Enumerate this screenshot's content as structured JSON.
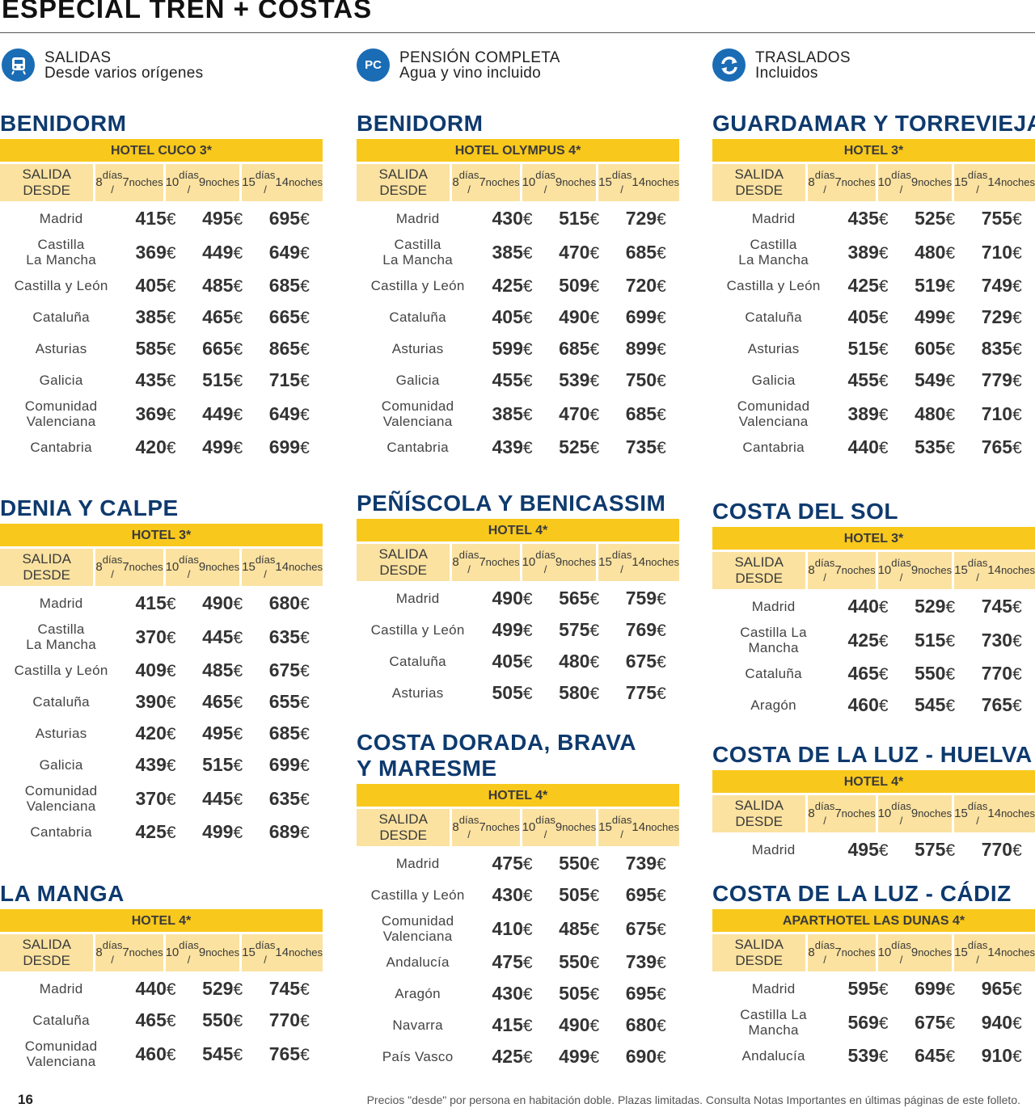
{
  "page_title": "ESPECIAL TREN + COSTAS",
  "features": [
    {
      "icon": "train-icon",
      "line1": "SALIDAS",
      "line2": "Desde varios orígenes"
    },
    {
      "icon": "pc-badge-icon",
      "badge": "PC",
      "line1": "PENSIÓN COMPLETA",
      "line2": "Agua y vino incluido"
    },
    {
      "icon": "transfer-arrows-icon",
      "line1": "TRASLADOS",
      "line2": "Incluidos"
    }
  ],
  "labels": {
    "salida_desde": "SALIDA DESDE",
    "d1": "8",
    "n1": "7",
    "d2": "10",
    "n2": "9",
    "d3": "15",
    "n3": "14",
    "dias": " días /",
    "noches": " noches",
    "currency": "€"
  },
  "colors": {
    "title": "#0e3a6e",
    "hotel_bar": "#f8c81c",
    "subheader": "#fbe2a0",
    "icon": "#1a6cb5"
  },
  "sections": [
    {
      "title": "BENIDORM",
      "hotel": "HOTEL CUCO 3*",
      "rows": [
        [
          "Madrid",
          "415",
          "495",
          "695"
        ],
        [
          "Castilla\nLa Mancha",
          "369",
          "449",
          "649"
        ],
        [
          "Castilla y León",
          "405",
          "485",
          "685"
        ],
        [
          "Cataluña",
          "385",
          "465",
          "665"
        ],
        [
          "Asturias",
          "585",
          "665",
          "865"
        ],
        [
          "Galicia",
          "435",
          "515",
          "715"
        ],
        [
          "Comunidad\nValenciana",
          "369",
          "449",
          "649"
        ],
        [
          "Cantabria",
          "420",
          "499",
          "699"
        ]
      ]
    },
    {
      "title": "DENIA Y CALPE",
      "hotel": "HOTEL 3*",
      "rows": [
        [
          "Madrid",
          "415",
          "490",
          "680"
        ],
        [
          "Castilla\nLa Mancha",
          "370",
          "445",
          "635"
        ],
        [
          "Castilla y León",
          "409",
          "485",
          "675"
        ],
        [
          "Cataluña",
          "390",
          "465",
          "655"
        ],
        [
          "Asturias",
          "420",
          "495",
          "685"
        ],
        [
          "Galicia",
          "439",
          "515",
          "699"
        ],
        [
          "Comunidad\nValenciana",
          "370",
          "445",
          "635"
        ],
        [
          "Cantabria",
          "425",
          "499",
          "689"
        ]
      ]
    },
    {
      "title": "LA MANGA",
      "hotel": "HOTEL 4*",
      "rows": [
        [
          "Madrid",
          "440",
          "529",
          "745"
        ],
        [
          "Cataluña",
          "465",
          "550",
          "770"
        ],
        [
          "Comunidad\nValenciana",
          "460",
          "545",
          "765"
        ]
      ]
    },
    {
      "title": "BENIDORM",
      "hotel": "HOTEL OLYMPUS 4*",
      "rows": [
        [
          "Madrid",
          "430",
          "515",
          "729"
        ],
        [
          "Castilla\nLa Mancha",
          "385",
          "470",
          "685"
        ],
        [
          "Castilla y León",
          "425",
          "509",
          "720"
        ],
        [
          "Cataluña",
          "405",
          "490",
          "699"
        ],
        [
          "Asturias",
          "599",
          "685",
          "899"
        ],
        [
          "Galicia",
          "455",
          "539",
          "750"
        ],
        [
          "Comunidad\nValenciana",
          "385",
          "470",
          "685"
        ],
        [
          "Cantabria",
          "439",
          "525",
          "735"
        ]
      ]
    },
    {
      "title": "PEÑÍSCOLA Y BENICASSIM",
      "hotel": "HOTEL 4*",
      "rows": [
        [
          "Madrid",
          "490",
          "565",
          "759"
        ],
        [
          "Castilla y León",
          "499",
          "575",
          "769"
        ],
        [
          "Cataluña",
          "405",
          "480",
          "675"
        ],
        [
          "Asturias",
          "505",
          "580",
          "775"
        ]
      ]
    },
    {
      "title": "COSTA DORADA, BRAVA\nY MARESME",
      "hotel": "HOTEL 4*",
      "rows": [
        [
          "Madrid",
          "475",
          "550",
          "739"
        ],
        [
          "Castilla y León",
          "430",
          "505",
          "695"
        ],
        [
          "Comunidad\nValenciana",
          "410",
          "485",
          "675"
        ],
        [
          "Andalucía",
          "475",
          "550",
          "739"
        ],
        [
          "Aragón",
          "430",
          "505",
          "695"
        ],
        [
          "Navarra",
          "415",
          "490",
          "680"
        ],
        [
          "País Vasco",
          "425",
          "499",
          "690"
        ]
      ]
    },
    {
      "title": "GUARDAMAR Y TORREVIEJA",
      "hotel": "HOTEL 3*",
      "rows": [
        [
          "Madrid",
          "435",
          "525",
          "755"
        ],
        [
          "Castilla\nLa Mancha",
          "389",
          "480",
          "710"
        ],
        [
          "Castilla y León",
          "425",
          "519",
          "749"
        ],
        [
          "Cataluña",
          "405",
          "499",
          "729"
        ],
        [
          "Asturias",
          "515",
          "605",
          "835"
        ],
        [
          "Galicia",
          "455",
          "549",
          "779"
        ],
        [
          "Comunidad\nValenciana",
          "389",
          "480",
          "710"
        ],
        [
          "Cantabria",
          "440",
          "535",
          "765"
        ]
      ]
    },
    {
      "title": "COSTA DEL SOL",
      "hotel": "HOTEL 3*",
      "rows": [
        [
          "Madrid",
          "440",
          "529",
          "745"
        ],
        [
          "Castilla La\nMancha",
          "425",
          "515",
          "730"
        ],
        [
          "Cataluña",
          "465",
          "550",
          "770"
        ],
        [
          "Aragón",
          "460",
          "545",
          "765"
        ]
      ]
    },
    {
      "title": "COSTA DE LA LUZ - HUELVA",
      "hotel": "HOTEL 4*",
      "rows": [
        [
          "Madrid",
          "495",
          "575",
          "770"
        ]
      ]
    },
    {
      "title": "COSTA DE LA LUZ - CÁDIZ",
      "hotel": "APARTHOTEL LAS DUNAS 4*",
      "rows": [
        [
          "Madrid",
          "595",
          "699",
          "965"
        ],
        [
          "Castilla La\nMancha",
          "569",
          "675",
          "940"
        ],
        [
          "Andalucía",
          "539",
          "645",
          "910"
        ]
      ]
    }
  ],
  "footer": {
    "page_number": "16",
    "note": "Precios \"desde\" por persona en habitación doble. Plazas limitadas. Consulta Notas Importantes en últimas páginas de este folleto."
  }
}
